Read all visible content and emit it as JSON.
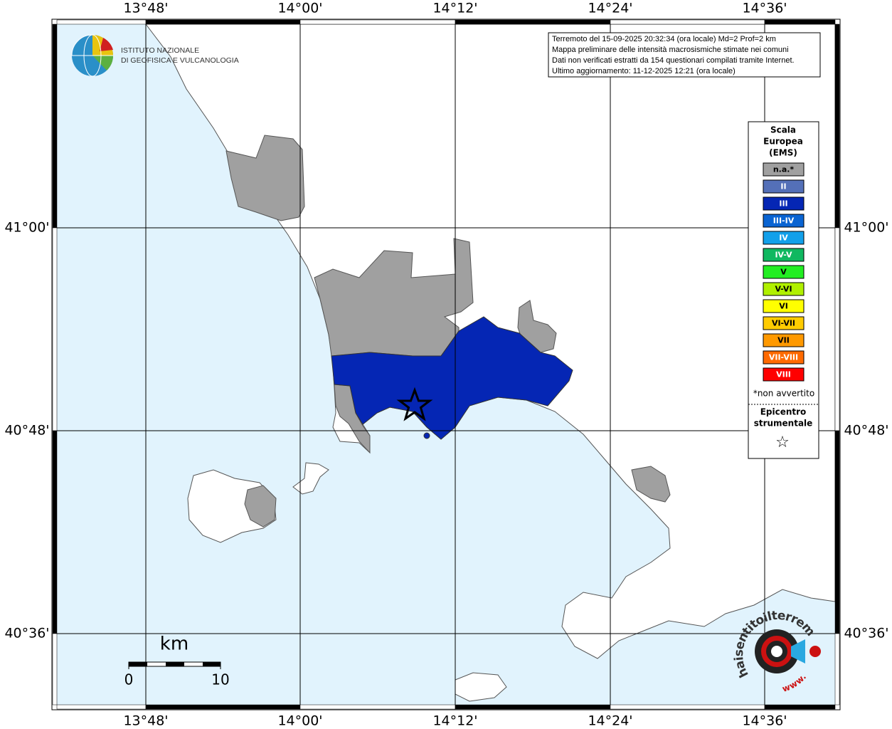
{
  "map": {
    "lon_labels": [
      "13°48'",
      "14°00'",
      "14°12'",
      "14°24'",
      "14°36'"
    ],
    "lat_labels": [
      "41°00'",
      "40°48'",
      "40°36'"
    ],
    "info": [
      "Terremoto del 15-09-2025 20:32:34 (ora locale) Md=2 Prof=2 km",
      "Mappa preliminare delle intensità macrosismiche stimate nei comuni",
      "Dati non verificati estratti da 154 questionari compilati tramite Internet.",
      "Ultimo aggiornamento: 11-12-2025 12:21 (ora locale)"
    ],
    "institute": [
      "ISTITUTO NAZIONALE",
      "DI GEOFISICA E VULCANOLOGIA"
    ],
    "legend": {
      "title": [
        "Scala",
        "Europea",
        "(EMS)"
      ],
      "classes": [
        {
          "label": "n.a.*",
          "color": "#a0a0a0"
        },
        {
          "label": "II",
          "color": "#5470b8"
        },
        {
          "label": "III",
          "color": "#0526b4"
        },
        {
          "label": "III-IV",
          "color": "#0a64d2"
        },
        {
          "label": "IV",
          "color": "#12a0ea"
        },
        {
          "label": "IV-V",
          "color": "#10b860"
        },
        {
          "label": "V",
          "color": "#22ee22"
        },
        {
          "label": "V-VI",
          "color": "#b0f000"
        },
        {
          "label": "VI",
          "color": "#ffff00"
        },
        {
          "label": "VI-VII",
          "color": "#ffcc00"
        },
        {
          "label": "VII",
          "color": "#ff9900"
        },
        {
          "label": "VII-VIII",
          "color": "#ff6a00"
        },
        {
          "label": "VIII",
          "color": "#ff0000"
        }
      ],
      "note": "*non avvertito",
      "epicenter": [
        "Epicentro",
        "strumentale"
      ],
      "epicenter_symbol": "☆"
    },
    "scale": {
      "unit": "km",
      "labels": [
        "0",
        "10"
      ]
    },
    "logo": [
      "haisentitoilterremoto.it",
      "www."
    ]
  }
}
